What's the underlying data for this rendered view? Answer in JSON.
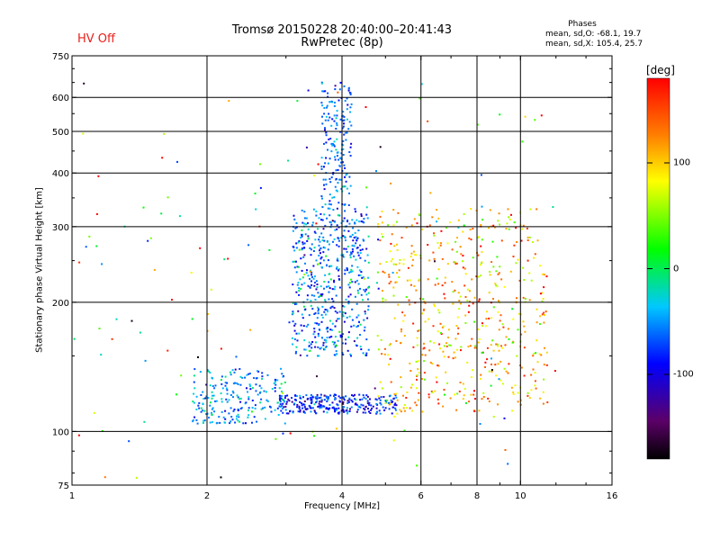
{
  "header": {
    "hv_status": "HV Off",
    "title_line1": "Tromsø 20150228 20:40:00–20:41:43",
    "title_line2": "RwPretec (8p)"
  },
  "phases": {
    "title": "Phases",
    "line_o": "mean, sd,O: -68.1, 19.7",
    "line_x": "mean, sd,X: 105.4, 25.7"
  },
  "colorbar": {
    "unit": "[deg]",
    "ticks": [
      {
        "value": 100,
        "label": "100"
      },
      {
        "value": 0,
        "label": "0"
      },
      {
        "value": -100,
        "label": "-100"
      }
    ],
    "range": [
      -180,
      180
    ]
  },
  "chart_data": {
    "type": "scatter",
    "title": "Tromsø 20150228 20:40:00–20:41:43",
    "subtitle": "RwPretec (8p)",
    "xlabel": "Frequency [MHz]",
    "ylabel": "Stationary phase Virtual Height [km]",
    "xscale": "log",
    "yscale": "log",
    "xlim": [
      1,
      16
    ],
    "ylim": [
      75,
      750
    ],
    "x_ticks": [
      1,
      2,
      4,
      6,
      8,
      10,
      16
    ],
    "x_tick_labels": [
      "1",
      "2",
      "4",
      "6",
      "8",
      "10",
      "16"
    ],
    "y_ticks": [
      75,
      100,
      200,
      300,
      400,
      500,
      600,
      750
    ],
    "y_tick_labels": [
      "75",
      "100",
      "200",
      "300",
      "400",
      "500",
      "600",
      "750"
    ],
    "x_grid": [
      2,
      4,
      6,
      8,
      10
    ],
    "y_grid": [
      100,
      200,
      300,
      400,
      500,
      600
    ],
    "color_variable": "phase [deg]",
    "colorscale": "rainbow",
    "clusters": [
      {
        "description": "O-mode low trace",
        "x_range": [
          1.85,
          3.0
        ],
        "y_range": [
          104,
          140
        ],
        "phase_mean": -50,
        "phase_sd": 25
      },
      {
        "description": "F-region lower trace",
        "x_range": [
          2.9,
          5.3
        ],
        "y_range": [
          110,
          122
        ],
        "phase_mean": -85,
        "phase_sd": 25
      },
      {
        "description": "Main cusp",
        "x_range": [
          3.1,
          4.6
        ],
        "y_range": [
          150,
          330
        ],
        "phase_mean": -60,
        "phase_sd": 30
      },
      {
        "description": "Cusp rise",
        "x_range": [
          3.6,
          4.2
        ],
        "y_range": [
          330,
          650
        ],
        "phase_mean": -60,
        "phase_sd": 20
      },
      {
        "description": "X-mode traces",
        "x_range": [
          4.8,
          11.5
        ],
        "y_range": [
          110,
          330
        ],
        "phase_mean": 105,
        "phase_sd": 40
      },
      {
        "description": "Sparse noise",
        "x_range": [
          1.0,
          12.0
        ],
        "y_range": [
          78,
          650
        ],
        "phase_mean": 60,
        "phase_sd": 110
      }
    ]
  }
}
